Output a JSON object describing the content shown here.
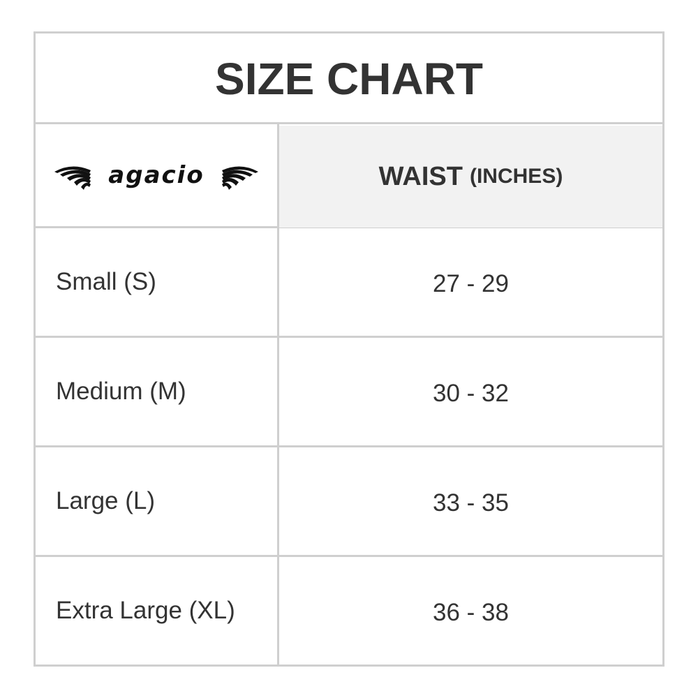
{
  "title": "SIZE CHART",
  "logo": {
    "text": "agacio"
  },
  "header": {
    "column": "WAIST",
    "unit": "(INCHES)"
  },
  "rows": [
    {
      "size": "Small (S)",
      "waist": "27 - 29"
    },
    {
      "size": "Medium (M)",
      "waist": "30 - 32"
    },
    {
      "size": "Large (L)",
      "waist": "33 - 35"
    },
    {
      "size": "Extra Large (XL)",
      "waist": "36 - 38"
    }
  ]
}
